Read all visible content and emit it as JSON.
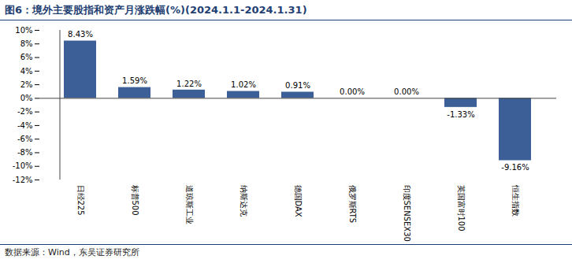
{
  "chart_data": {
    "type": "bar",
    "title": "图6：境外主要股指和资产月涨跌幅(%)(2024.1.1-2024.1.31)",
    "caption": "数据来源：Wind，东吴证券研究所",
    "categories": [
      "日经225",
      "标普500",
      "道琼斯工业",
      "纳斯达克",
      "德国DAX",
      "俄罗斯RTS",
      "印度SENSEX30",
      "英国富时100",
      "恒生指数"
    ],
    "values": [
      8.43,
      1.59,
      1.22,
      1.02,
      0.91,
      0.0,
      0.0,
      -1.33,
      -9.16
    ],
    "value_labels": [
      "8.43%",
      "1.59%",
      "1.22%",
      "1.02%",
      "0.91%",
      "0.00%",
      "0.00%",
      "-1.33%",
      "-9.16%"
    ],
    "color": "#3b5f96",
    "data_labels": true,
    "grid": false,
    "ylim": [
      -12,
      10
    ],
    "yticks": [
      {
        "value": -12,
        "label": "-12%"
      },
      {
        "value": -10,
        "label": "-10%"
      },
      {
        "value": -8,
        "label": "-8%"
      },
      {
        "value": -6,
        "label": "-6%"
      },
      {
        "value": -4,
        "label": "-4%"
      },
      {
        "value": -2,
        "label": "-2%"
      },
      {
        "value": 0,
        "label": "0%"
      },
      {
        "value": 2,
        "label": "2%"
      },
      {
        "value": 4,
        "label": "4%"
      },
      {
        "value": 6,
        "label": "6%"
      },
      {
        "value": 8,
        "label": "8%"
      },
      {
        "value": 10,
        "label": "10%"
      }
    ]
  }
}
